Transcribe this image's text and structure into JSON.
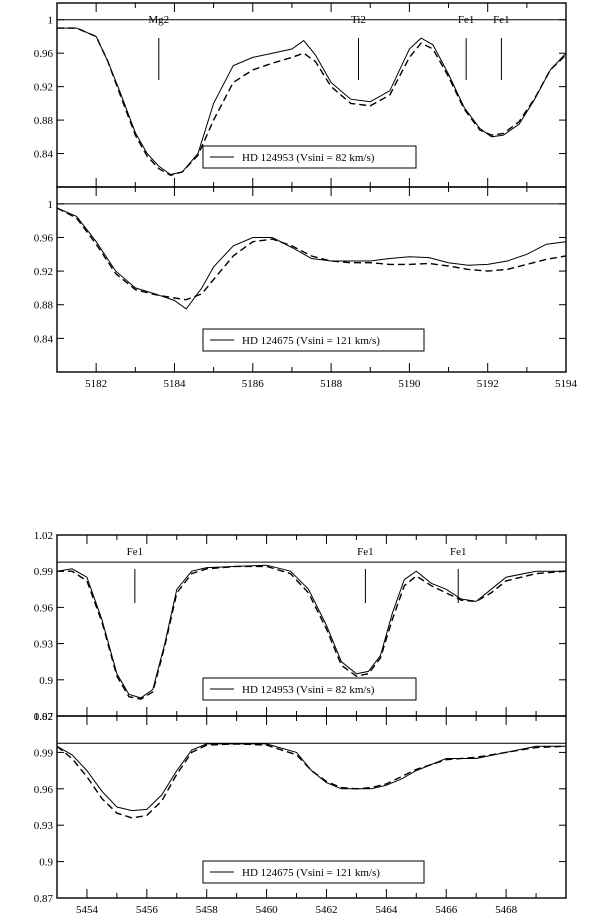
{
  "chart_data": [
    {
      "type": "line",
      "wavelength_range": [
        5181,
        5194
      ],
      "ylim": [
        0.8,
        1.02
      ],
      "yticks": [
        "0.84",
        "0.88",
        "0.92",
        "0.96",
        "1"
      ],
      "xticks": [],
      "continuum": 1.0,
      "line_ids": [
        {
          "label": "Mg2",
          "x": 5183.6
        },
        {
          "label": "Ti2",
          "x": 5188.7
        },
        {
          "label": "Fe1",
          "x": 5191.45
        },
        {
          "label": "Fe1",
          "x": 5192.35
        }
      ],
      "legend": "HD 124953 (Vsini = 82 km/s)",
      "series": [
        {
          "style": "solid",
          "x": [
            5181,
            5181.5,
            5182,
            5182.3,
            5182.6,
            5183,
            5183.3,
            5183.6,
            5183.9,
            5184.2,
            5184.6,
            5185,
            5185.5,
            5186,
            5186.5,
            5187,
            5187.3,
            5187.6,
            5188,
            5188.5,
            5189,
            5189.5,
            5190,
            5190.3,
            5190.6,
            5191,
            5191.4,
            5191.8,
            5192.1,
            5192.4,
            5192.8,
            5193.2,
            5193.6,
            5194
          ],
          "y": [
            0.99,
            0.99,
            0.98,
            0.95,
            0.915,
            0.865,
            0.84,
            0.825,
            0.815,
            0.818,
            0.84,
            0.9,
            0.945,
            0.955,
            0.96,
            0.965,
            0.975,
            0.958,
            0.925,
            0.905,
            0.902,
            0.915,
            0.965,
            0.978,
            0.97,
            0.935,
            0.895,
            0.87,
            0.86,
            0.862,
            0.875,
            0.905,
            0.94,
            0.96
          ]
        },
        {
          "style": "dashed",
          "x": [
            5181,
            5181.5,
            5182,
            5182.3,
            5182.6,
            5183,
            5183.3,
            5183.6,
            5183.9,
            5184.2,
            5184.6,
            5185,
            5185.5,
            5186,
            5186.5,
            5187,
            5187.3,
            5187.6,
            5188,
            5188.5,
            5189,
            5189.5,
            5190,
            5190.3,
            5190.6,
            5191,
            5191.4,
            5191.8,
            5192.1,
            5192.4,
            5192.8,
            5193.2,
            5193.6,
            5194
          ],
          "y": [
            0.99,
            0.99,
            0.98,
            0.95,
            0.912,
            0.862,
            0.837,
            0.822,
            0.814,
            0.818,
            0.838,
            0.88,
            0.925,
            0.94,
            0.948,
            0.955,
            0.96,
            0.95,
            0.92,
            0.9,
            0.897,
            0.91,
            0.955,
            0.972,
            0.965,
            0.932,
            0.893,
            0.868,
            0.862,
            0.864,
            0.878,
            0.906,
            0.94,
            0.958
          ]
        }
      ]
    },
    {
      "type": "line",
      "wavelength_range": [
        5181,
        5194
      ],
      "ylim": [
        0.8,
        1.02
      ],
      "yticks": [
        "0.84",
        "0.88",
        "0.92",
        "0.96",
        "1"
      ],
      "xticks": [
        "5182",
        "5184",
        "5186",
        "5188",
        "5190",
        "5192",
        "5194"
      ],
      "continuum": 1.0,
      "line_ids": [],
      "legend": "HD 124675 (Vsini = 121 km/s)",
      "series": [
        {
          "style": "solid",
          "x": [
            5181,
            5181.5,
            5182,
            5182.5,
            5183,
            5183.5,
            5184,
            5184.3,
            5184.7,
            5185,
            5185.5,
            5186,
            5186.5,
            5187,
            5187.5,
            5188,
            5188.5,
            5189,
            5189.5,
            5190,
            5190.5,
            5191,
            5191.5,
            5192,
            5192.5,
            5193,
            5193.5,
            5194
          ],
          "y": [
            0.995,
            0.985,
            0.955,
            0.92,
            0.9,
            0.893,
            0.885,
            0.875,
            0.9,
            0.925,
            0.95,
            0.96,
            0.96,
            0.948,
            0.935,
            0.932,
            0.932,
            0.932,
            0.935,
            0.937,
            0.936,
            0.93,
            0.927,
            0.928,
            0.932,
            0.94,
            0.952,
            0.955
          ]
        },
        {
          "style": "dashed",
          "x": [
            5181,
            5181.5,
            5182,
            5182.5,
            5183,
            5183.5,
            5184,
            5184.3,
            5184.7,
            5185,
            5185.5,
            5186,
            5186.5,
            5187,
            5187.5,
            5188,
            5188.5,
            5189,
            5189.5,
            5190,
            5190.5,
            5191,
            5191.5,
            5192,
            5192.5,
            5193,
            5193.5,
            5194
          ],
          "y": [
            0.995,
            0.983,
            0.952,
            0.917,
            0.898,
            0.892,
            0.888,
            0.886,
            0.893,
            0.91,
            0.938,
            0.955,
            0.958,
            0.95,
            0.938,
            0.932,
            0.93,
            0.93,
            0.928,
            0.928,
            0.929,
            0.926,
            0.922,
            0.92,
            0.922,
            0.928,
            0.934,
            0.938
          ]
        }
      ]
    },
    {
      "type": "line",
      "wavelength_range": [
        5453,
        5470
      ],
      "ylim": [
        0.87,
        1.02
      ],
      "yticks": [
        "0.87",
        "0.9",
        "0.93",
        "0.96",
        "0.99",
        "1.02"
      ],
      "xticks": [],
      "continuum": 0.9975,
      "line_ids": [
        {
          "label": "Fe1",
          "x": 5455.6
        },
        {
          "label": "Fe1",
          "x": 5463.3
        },
        {
          "label": "Fe1",
          "x": 5466.4
        }
      ],
      "legend": "HD 124953 (Vsini = 82 km/s)",
      "series": [
        {
          "style": "solid",
          "x": [
            5453,
            5453.5,
            5454,
            5454.5,
            5455,
            5455.4,
            5455.8,
            5456.2,
            5456.6,
            5457,
            5457.5,
            5458,
            5459,
            5460,
            5460.8,
            5461.4,
            5462,
            5462.5,
            5463,
            5463.4,
            5463.8,
            5464.2,
            5464.6,
            5465,
            5465.5,
            5466,
            5466.5,
            5467,
            5467.5,
            5468,
            5469,
            5470
          ],
          "y": [
            0.99,
            0.992,
            0.985,
            0.95,
            0.905,
            0.888,
            0.885,
            0.892,
            0.93,
            0.975,
            0.99,
            0.993,
            0.994,
            0.995,
            0.99,
            0.975,
            0.945,
            0.915,
            0.905,
            0.907,
            0.92,
            0.955,
            0.983,
            0.99,
            0.98,
            0.975,
            0.967,
            0.965,
            0.975,
            0.985,
            0.99,
            0.99
          ]
        },
        {
          "style": "dashed",
          "x": [
            5453,
            5453.5,
            5454,
            5454.5,
            5455,
            5455.4,
            5455.8,
            5456.2,
            5456.6,
            5457,
            5457.5,
            5458,
            5459,
            5460,
            5460.8,
            5461.4,
            5462,
            5462.5,
            5463,
            5463.4,
            5463.8,
            5464.2,
            5464.6,
            5465,
            5465.5,
            5466,
            5466.5,
            5467,
            5467.5,
            5468,
            5469,
            5470
          ],
          "y": [
            0.99,
            0.99,
            0.982,
            0.948,
            0.903,
            0.886,
            0.884,
            0.89,
            0.928,
            0.972,
            0.988,
            0.992,
            0.994,
            0.994,
            0.988,
            0.972,
            0.942,
            0.912,
            0.903,
            0.905,
            0.918,
            0.95,
            0.978,
            0.986,
            0.978,
            0.972,
            0.966,
            0.965,
            0.972,
            0.982,
            0.988,
            0.99
          ]
        }
      ]
    },
    {
      "type": "line",
      "wavelength_range": [
        5453,
        5470
      ],
      "ylim": [
        0.87,
        1.02
      ],
      "yticks": [
        "0.87",
        "0.9",
        "0.93",
        "0.96",
        "0.99",
        "1.02"
      ],
      "xticks": [
        "5454",
        "5456",
        "5458",
        "5460",
        "5462",
        "5464",
        "5466",
        "5468"
      ],
      "continuum": 0.9975,
      "line_ids": [],
      "legend": "HD 124675 (Vsini = 121 km/s)",
      "series": [
        {
          "style": "solid",
          "x": [
            5453,
            5453.5,
            5454,
            5454.5,
            5455,
            5455.5,
            5456,
            5456.5,
            5457,
            5457.5,
            5458,
            5459,
            5460,
            5461,
            5461.5,
            5462,
            5462.5,
            5463,
            5463.5,
            5464,
            5464.5,
            5465,
            5466,
            5467,
            5468,
            5469,
            5470
          ],
          "y": [
            0.995,
            0.988,
            0.975,
            0.958,
            0.945,
            0.942,
            0.943,
            0.955,
            0.975,
            0.992,
            0.997,
            0.997,
            0.997,
            0.99,
            0.975,
            0.965,
            0.96,
            0.96,
            0.96,
            0.963,
            0.968,
            0.975,
            0.985,
            0.985,
            0.99,
            0.995,
            0.995
          ]
        },
        {
          "style": "dashed",
          "x": [
            5453,
            5453.5,
            5454,
            5454.5,
            5455,
            5455.5,
            5456,
            5456.5,
            5457,
            5457.5,
            5458,
            5459,
            5460,
            5461,
            5461.5,
            5462,
            5462.5,
            5463,
            5463.5,
            5464,
            5464.5,
            5465,
            5466,
            5467,
            5468,
            5469,
            5470
          ],
          "y": [
            0.995,
            0.985,
            0.97,
            0.952,
            0.94,
            0.936,
            0.938,
            0.95,
            0.972,
            0.99,
            0.996,
            0.997,
            0.996,
            0.988,
            0.975,
            0.966,
            0.961,
            0.96,
            0.961,
            0.964,
            0.97,
            0.976,
            0.984,
            0.986,
            0.99,
            0.994,
            0.995
          ]
        }
      ]
    }
  ]
}
